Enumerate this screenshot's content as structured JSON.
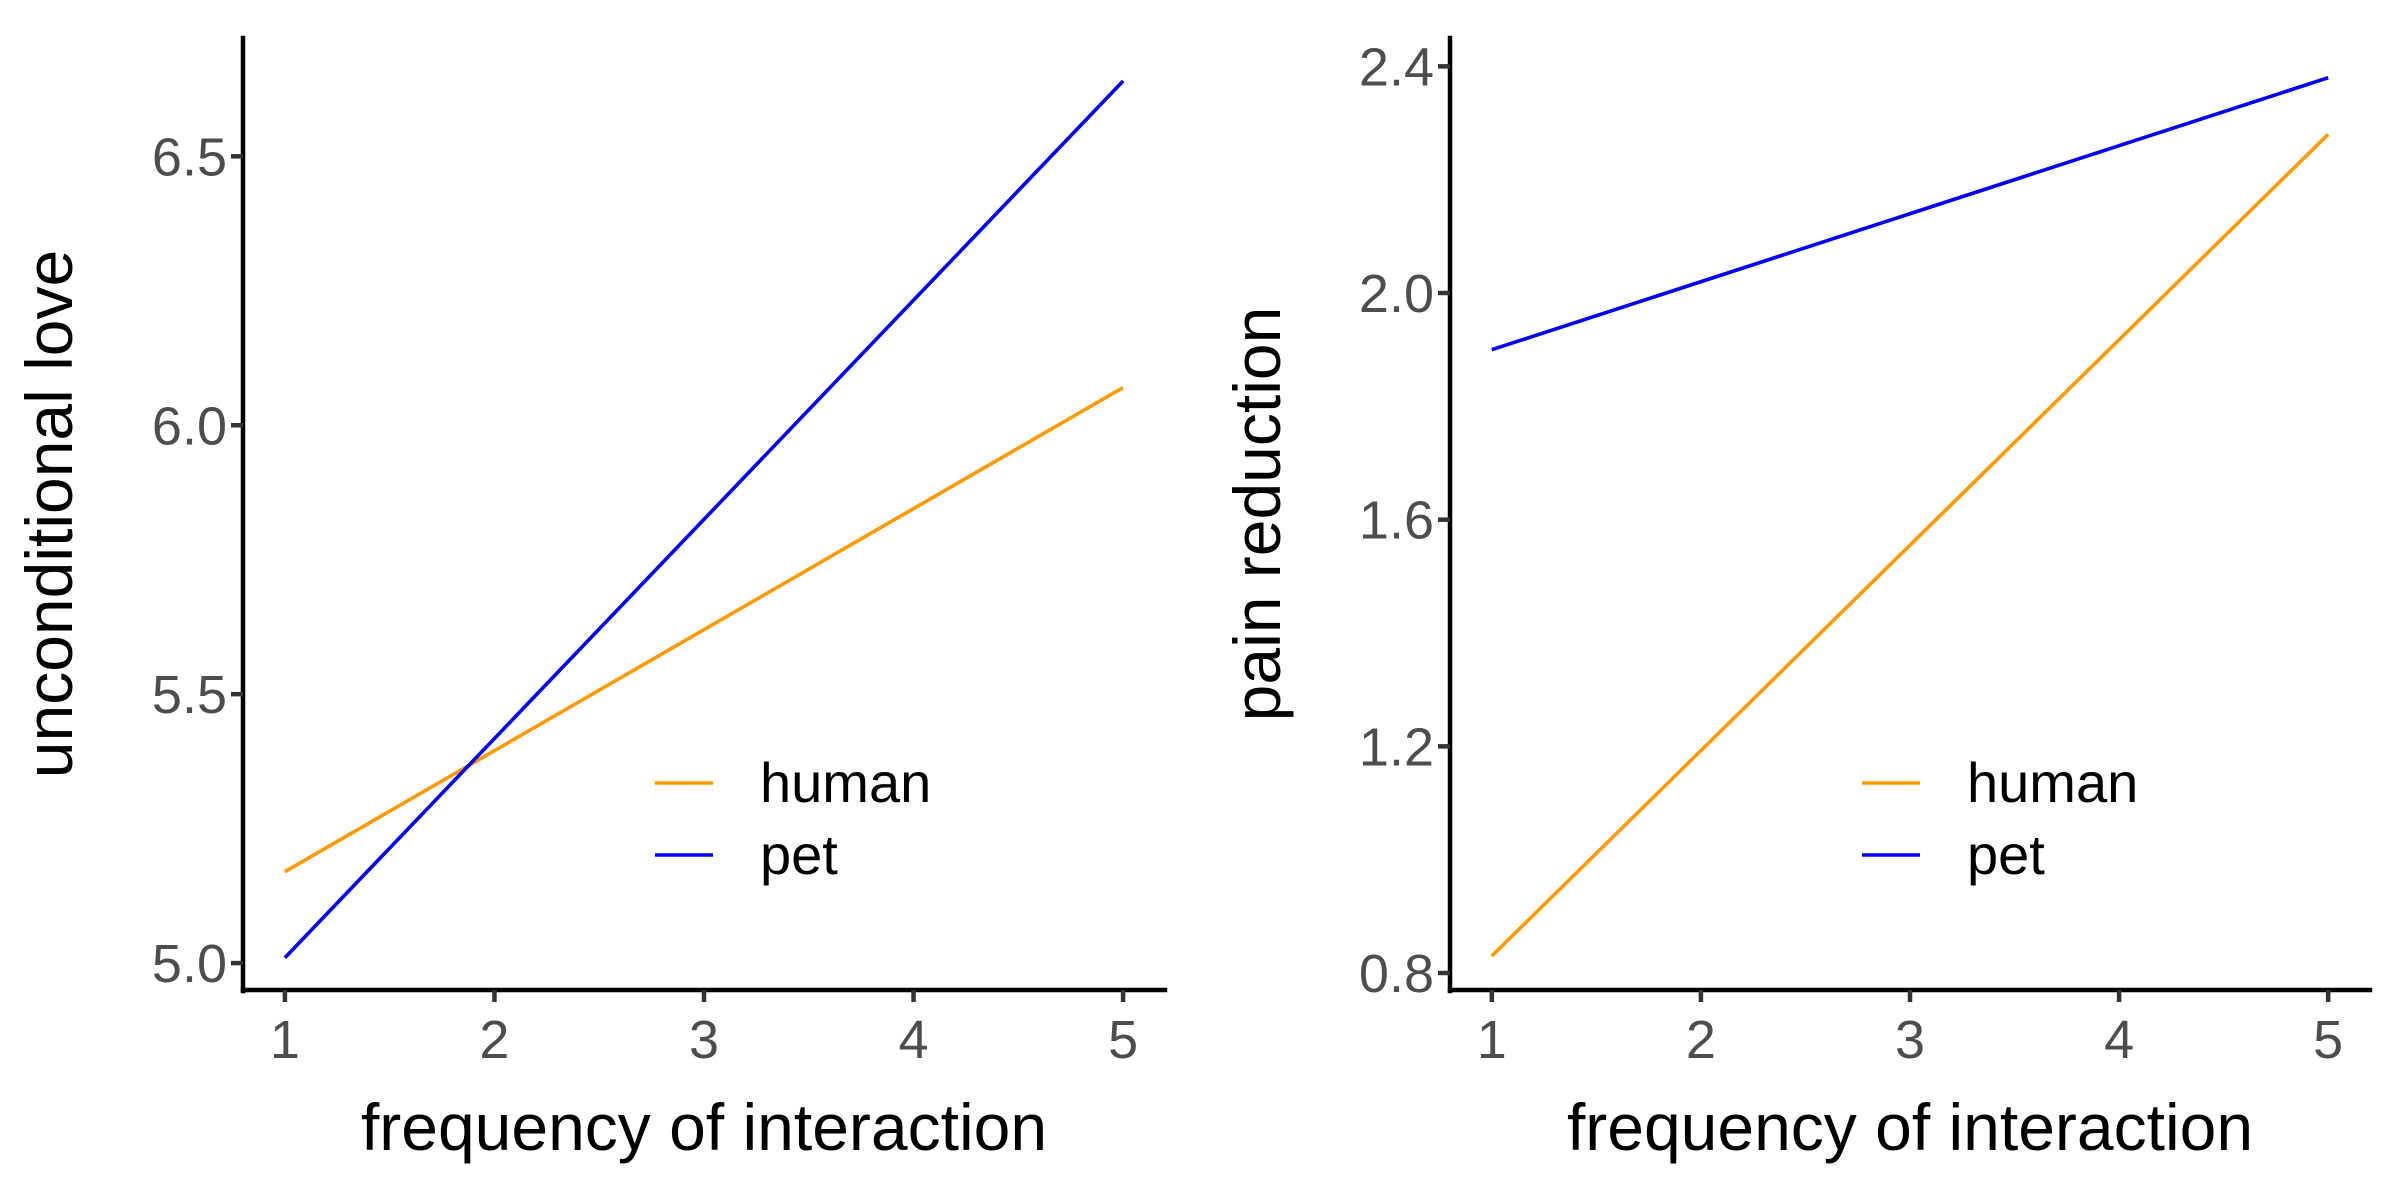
{
  "chart_data": [
    {
      "type": "line",
      "xlabel": "frequency of interaction",
      "ylabel": "unconditional love",
      "xlim": [
        0.8,
        5.2
      ],
      "ylim": [
        4.95,
        6.72
      ],
      "xticks": [
        1,
        2,
        3,
        4,
        5
      ],
      "xtick_labels": [
        "1",
        "2",
        "3",
        "4",
        "5"
      ],
      "yticks": [
        5.0,
        5.5,
        6.0,
        6.5
      ],
      "ytick_labels": [
        "5.0",
        "5.5",
        "6.0",
        "6.5"
      ],
      "grid": false,
      "legend_position": "bottom-right",
      "series": [
        {
          "name": "human",
          "color": "#FF9900",
          "x": [
            1,
            5
          ],
          "y": [
            5.17,
            6.07
          ]
        },
        {
          "name": "pet",
          "color": "#0000FF",
          "x": [
            1,
            5
          ],
          "y": [
            5.01,
            6.64
          ]
        }
      ]
    },
    {
      "type": "line",
      "xlabel": "frequency of interaction",
      "ylabel": "pain reduction",
      "xlim": [
        0.8,
        5.2
      ],
      "ylim": [
        0.77,
        2.45
      ],
      "xticks": [
        1,
        2,
        3,
        4,
        5
      ],
      "xtick_labels": [
        "1",
        "2",
        "3",
        "4",
        "5"
      ],
      "yticks": [
        0.8,
        1.2,
        1.6,
        2.0,
        2.4
      ],
      "ytick_labels": [
        "0.8",
        "1.2",
        "1.6",
        "2.0",
        "2.4"
      ],
      "grid": false,
      "legend_position": "bottom-right",
      "series": [
        {
          "name": "human",
          "color": "#FF9900",
          "x": [
            1,
            5
          ],
          "y": [
            0.83,
            2.28
          ]
        },
        {
          "name": "pet",
          "color": "#0000FF",
          "x": [
            1,
            5
          ],
          "y": [
            1.9,
            2.38
          ]
        }
      ]
    }
  ]
}
